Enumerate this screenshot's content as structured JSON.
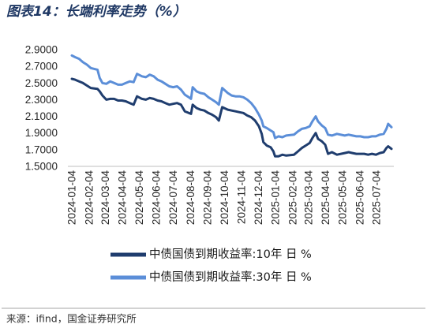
{
  "chart_data": {
    "type": "line",
    "title": "图表14：长端利率走势（%）",
    "ylim": [
      1.5,
      2.9
    ],
    "y_ticks": [
      "2.9000",
      "2.7000",
      "2.5000",
      "2.3000",
      "2.1000",
      "1.9000",
      "1.7000",
      "1.5000"
    ],
    "x_ticks": [
      "2024-01-04",
      "2024-02-04",
      "2024-03-04",
      "2024-04-04",
      "2024-05-04",
      "2024-06-04",
      "2024-07-04",
      "2024-08-04",
      "2024-09-04",
      "2024-10-04",
      "2024-11-04",
      "2024-12-04",
      "2025-01-04",
      "2025-02-04",
      "2025-03-04",
      "2025-04-04",
      "2025-05-04",
      "2025-06-04",
      "2025-07-04"
    ],
    "grid": false,
    "legend": "bottom",
    "x": [
      "2024-01-04",
      "2024-01-10",
      "2024-01-17",
      "2024-01-24",
      "2024-01-31",
      "2024-02-07",
      "2024-02-19",
      "2024-02-23",
      "2024-02-28",
      "2024-03-06",
      "2024-03-13",
      "2024-03-20",
      "2024-03-27",
      "2024-04-03",
      "2024-04-10",
      "2024-04-17",
      "2024-04-24",
      "2024-04-30",
      "2024-05-09",
      "2024-05-16",
      "2024-05-23",
      "2024-05-30",
      "2024-06-06",
      "2024-06-13",
      "2024-06-20",
      "2024-06-27",
      "2024-07-04",
      "2024-07-11",
      "2024-07-18",
      "2024-07-25",
      "2024-08-01",
      "2024-08-05",
      "2024-08-08",
      "2024-08-15",
      "2024-08-22",
      "2024-08-29",
      "2024-09-05",
      "2024-09-12",
      "2024-09-19",
      "2024-09-24",
      "2024-09-30",
      "2024-10-10",
      "2024-10-17",
      "2024-10-24",
      "2024-10-31",
      "2024-11-07",
      "2024-11-14",
      "2024-11-21",
      "2024-11-28",
      "2024-12-05",
      "2024-12-10",
      "2024-12-13",
      "2024-12-19",
      "2024-12-26",
      "2024-12-31",
      "2025-01-03",
      "2025-01-09",
      "2025-01-16",
      "2025-01-23",
      "2025-02-06",
      "2025-02-13",
      "2025-02-20",
      "2025-02-27",
      "2025-03-06",
      "2025-03-11",
      "2025-03-17",
      "2025-03-21",
      "2025-03-28",
      "2025-04-03",
      "2025-04-08",
      "2025-04-15",
      "2025-04-24",
      "2025-05-08",
      "2025-05-15",
      "2025-05-22",
      "2025-05-29",
      "2025-06-05",
      "2025-06-12",
      "2025-06-19",
      "2025-06-26",
      "2025-07-03",
      "2025-07-10",
      "2025-07-17",
      "2025-07-22",
      "2025-07-25",
      "2025-07-31"
    ],
    "series": [
      {
        "name": "中债国债到期收益率:10年 日 %",
        "color": "#1f3d6e",
        "values": [
          2.55,
          2.54,
          2.52,
          2.5,
          2.47,
          2.44,
          2.43,
          2.4,
          2.35,
          2.3,
          2.31,
          2.31,
          2.29,
          2.29,
          2.28,
          2.26,
          2.24,
          2.34,
          2.31,
          2.3,
          2.32,
          2.31,
          2.29,
          2.28,
          2.26,
          2.24,
          2.25,
          2.26,
          2.24,
          2.16,
          2.14,
          2.13,
          2.24,
          2.2,
          2.18,
          2.17,
          2.14,
          2.12,
          2.09,
          2.05,
          2.21,
          2.18,
          2.17,
          2.16,
          2.15,
          2.14,
          2.11,
          2.09,
          2.05,
          1.98,
          1.89,
          1.79,
          1.75,
          1.73,
          1.68,
          1.62,
          1.62,
          1.64,
          1.63,
          1.64,
          1.68,
          1.72,
          1.75,
          1.78,
          1.84,
          1.9,
          1.83,
          1.8,
          1.76,
          1.65,
          1.67,
          1.64,
          1.66,
          1.67,
          1.66,
          1.65,
          1.65,
          1.65,
          1.64,
          1.65,
          1.64,
          1.66,
          1.67,
          1.72,
          1.74,
          1.71
        ]
      },
      {
        "name": "中债国债到期收益率:30年 日 %",
        "color": "#5b8ed8",
        "values": [
          2.83,
          2.81,
          2.79,
          2.75,
          2.72,
          2.68,
          2.66,
          2.56,
          2.5,
          2.49,
          2.52,
          2.5,
          2.48,
          2.48,
          2.5,
          2.52,
          2.51,
          2.61,
          2.58,
          2.57,
          2.6,
          2.58,
          2.54,
          2.52,
          2.49,
          2.46,
          2.45,
          2.46,
          2.42,
          2.36,
          2.33,
          2.31,
          2.45,
          2.4,
          2.38,
          2.37,
          2.33,
          2.3,
          2.27,
          2.24,
          2.44,
          2.38,
          2.35,
          2.34,
          2.34,
          2.33,
          2.3,
          2.26,
          2.2,
          2.12,
          2.05,
          1.98,
          1.96,
          1.93,
          1.91,
          1.84,
          1.86,
          1.85,
          1.87,
          1.88,
          1.92,
          1.95,
          1.96,
          1.98,
          2.04,
          2.1,
          2.04,
          1.99,
          1.96,
          1.88,
          1.87,
          1.89,
          1.87,
          1.88,
          1.87,
          1.86,
          1.86,
          1.85,
          1.85,
          1.86,
          1.86,
          1.88,
          1.89,
          1.95,
          2.01,
          1.97
        ]
      }
    ]
  },
  "source": "来源：ifind，国金证券研究所"
}
